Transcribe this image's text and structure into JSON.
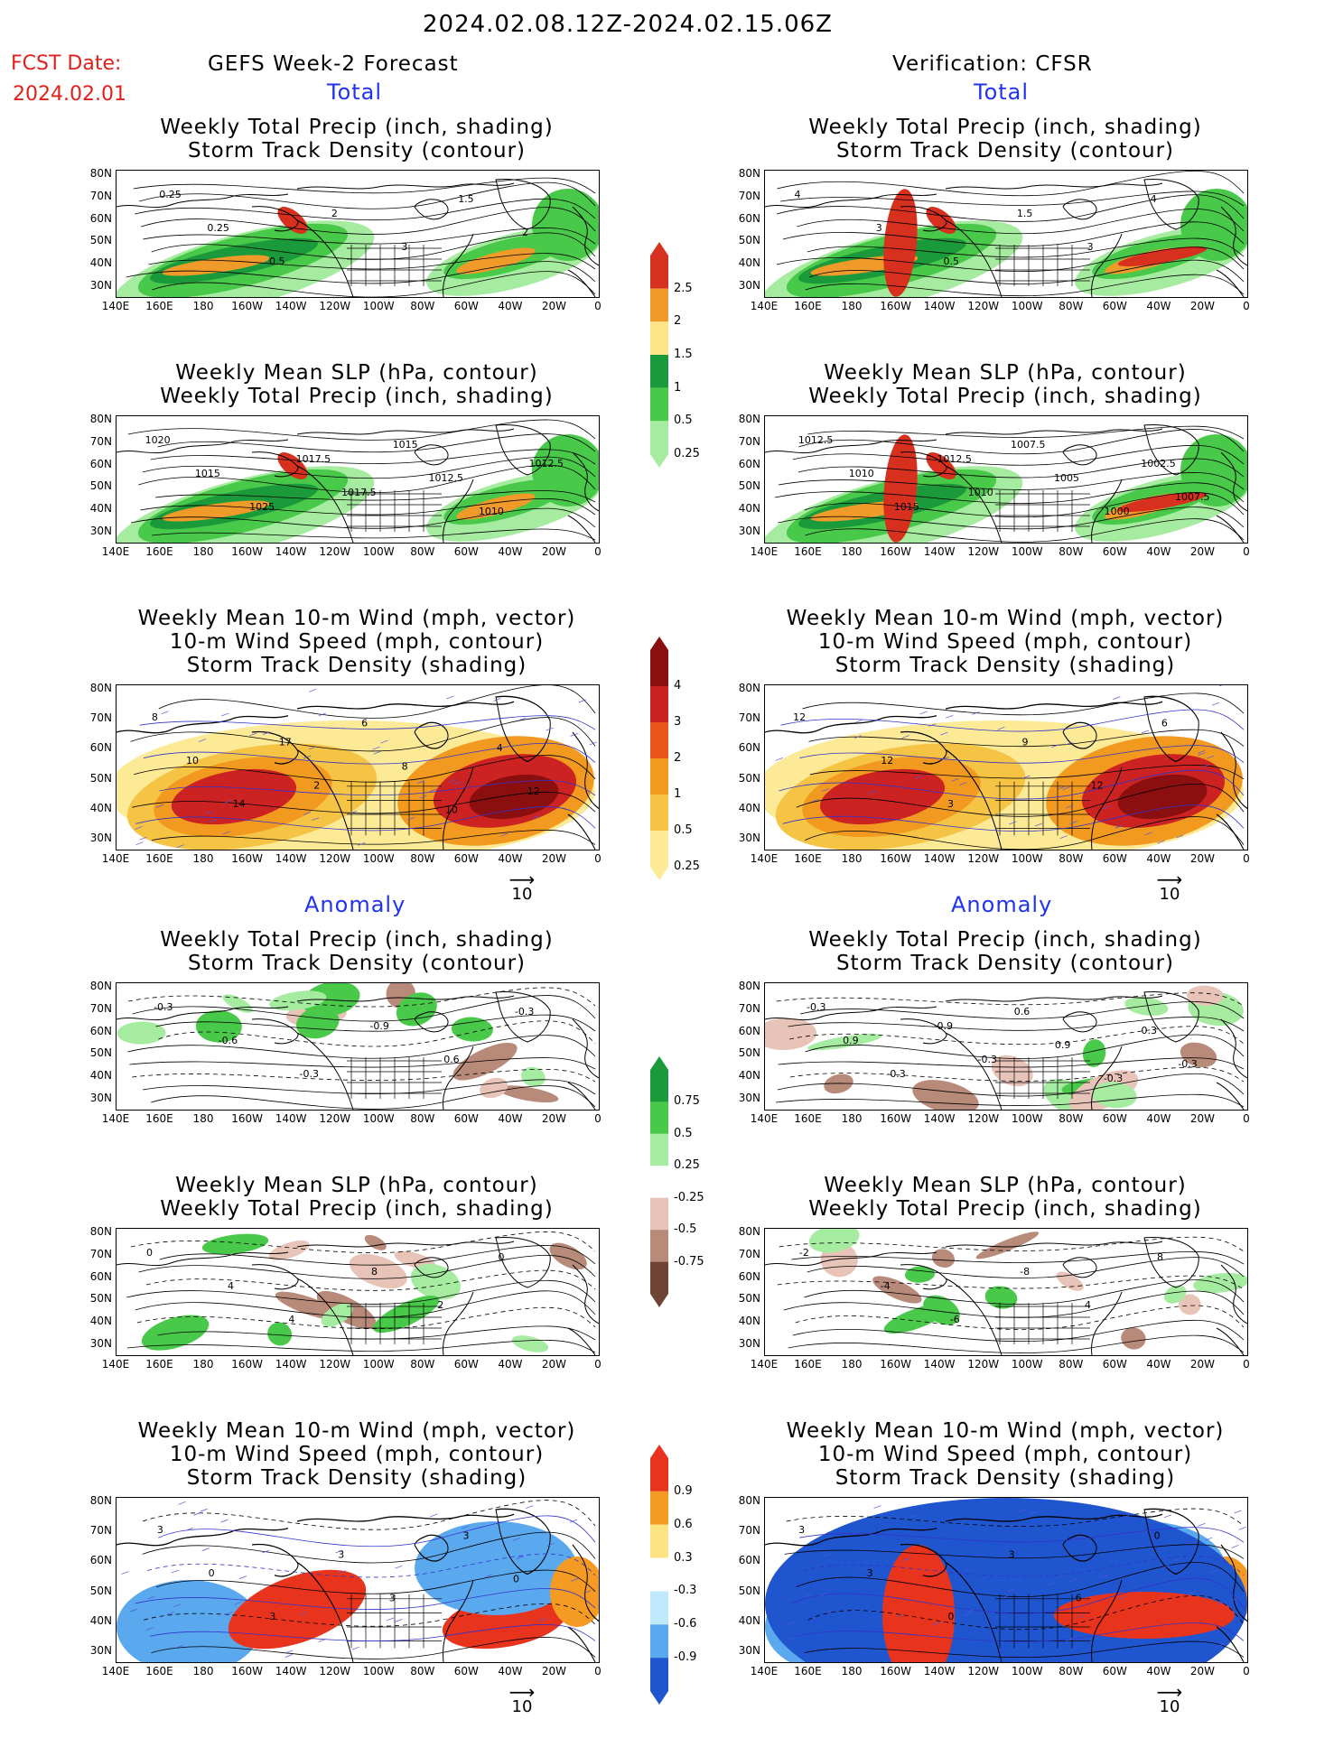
{
  "header": {
    "date_range": "2024.02.08.12Z-2024.02.15.06Z",
    "fcst_label": "FCST Date:",
    "fcst_date": "2024.02.01",
    "left_title": "GEFS Week-2 Forecast",
    "right_title": "Verification: CFSR",
    "total_label": "Total",
    "anomaly_label": "Anomaly"
  },
  "panel_titles": {
    "precip_track": [
      "Weekly Total Precip (inch, shading)",
      "Storm Track Density (contour)"
    ],
    "slp_precip": [
      "Weekly Mean SLP (hPa, contour)",
      "Weekly Total Precip (inch, shading)"
    ],
    "wind_track": [
      "Weekly Mean 10-m Wind (mph, vector)",
      "10-m Wind Speed (mph, contour)",
      "Storm Track Density (shading)"
    ]
  },
  "axes": {
    "lat_ticks": [
      "80N",
      "70N",
      "60N",
      "50N",
      "40N",
      "30N"
    ],
    "lon_ticks": [
      "140E",
      "160E",
      "180",
      "160W",
      "140W",
      "120W",
      "100W",
      "80W",
      "60W",
      "40W",
      "20W",
      "0"
    ]
  },
  "vector_ref": "10",
  "colorbars": {
    "precip_total": {
      "labels": [
        "2.5",
        "2",
        "1.5",
        "1",
        "0.5",
        "0.25"
      ],
      "colors": [
        "#d7301f",
        "#f09a2a",
        "#fde68a",
        "#1a9a3a",
        "#49c949",
        "#a6eca0"
      ]
    },
    "track_total": {
      "labels": [
        "4",
        "3",
        "2",
        "1",
        "0.5",
        "0.25"
      ],
      "colors": [
        "#8c0f0f",
        "#cc2222",
        "#e8561c",
        "#f29a1f",
        "#f6c445",
        "#fdea97"
      ]
    },
    "precip_anom": {
      "labels": [
        "0.75",
        "0.5",
        "0.25",
        "-0.25",
        "-0.5",
        "-0.75"
      ],
      "colors": [
        "#1a9a3a",
        "#49c949",
        "#a6eca0",
        "#ffffff",
        "#e8c4b8",
        "#b88a7a",
        "#6e4535"
      ]
    },
    "track_anom": {
      "labels": [
        "0.9",
        "0.6",
        "0.3",
        "-0.3",
        "-0.6",
        "-0.9"
      ],
      "colors": [
        "#e8341c",
        "#f59a23",
        "#fde382",
        "#ffffff",
        "#bfe9fb",
        "#5aa9ee",
        "#1f55cf"
      ]
    }
  },
  "contour_labels": {
    "fc_total_precip": [
      "0.25",
      "0.25",
      "0.5",
      "2",
      "3",
      "1.5",
      "2"
    ],
    "fc_total_slp": [
      "1020",
      "1015",
      "1025",
      "1017.5",
      "1017.5",
      "1015",
      "1012.5",
      "1010",
      "1012.5"
    ],
    "fc_total_wind": [
      "8",
      "10",
      "14",
      "17",
      "2",
      "6",
      "8",
      "10",
      "4",
      "12"
    ],
    "ver_total_precip": [
      "4",
      "3",
      "0.5",
      "1.5",
      "3",
      "4"
    ],
    "ver_total_slp": [
      "1012.5",
      "1010",
      "1015",
      "1012.5",
      "1010",
      "1007.5",
      "1005",
      "1000",
      "1002.5",
      "1007.5"
    ],
    "ver_total_wind": [
      "12",
      "12",
      "3",
      "9",
      "12",
      "6"
    ],
    "fc_anom_precip": [
      "-0.3",
      "-0.6",
      "-0.3",
      "-0.9",
      "0.6",
      "-0.3"
    ],
    "fc_anom_slp": [
      "0",
      "4",
      "4",
      "8",
      "2",
      "0"
    ],
    "fc_anom_wind": [
      "3",
      "0",
      "3",
      "3",
      "3",
      "3",
      "0"
    ],
    "ver_anom_precip": [
      "-0.3",
      "0.9",
      "-0.3",
      "-0.9",
      "-0.3",
      "0.6",
      "0.9",
      "-0.3",
      "0.3",
      "-0.3"
    ],
    "ver_anom_slp": [
      "-2",
      "-4",
      "-6",
      "-8",
      "4",
      "8"
    ],
    "ver_anom_wind": [
      "3",
      "3",
      "0",
      "3",
      "6",
      "0"
    ]
  }
}
